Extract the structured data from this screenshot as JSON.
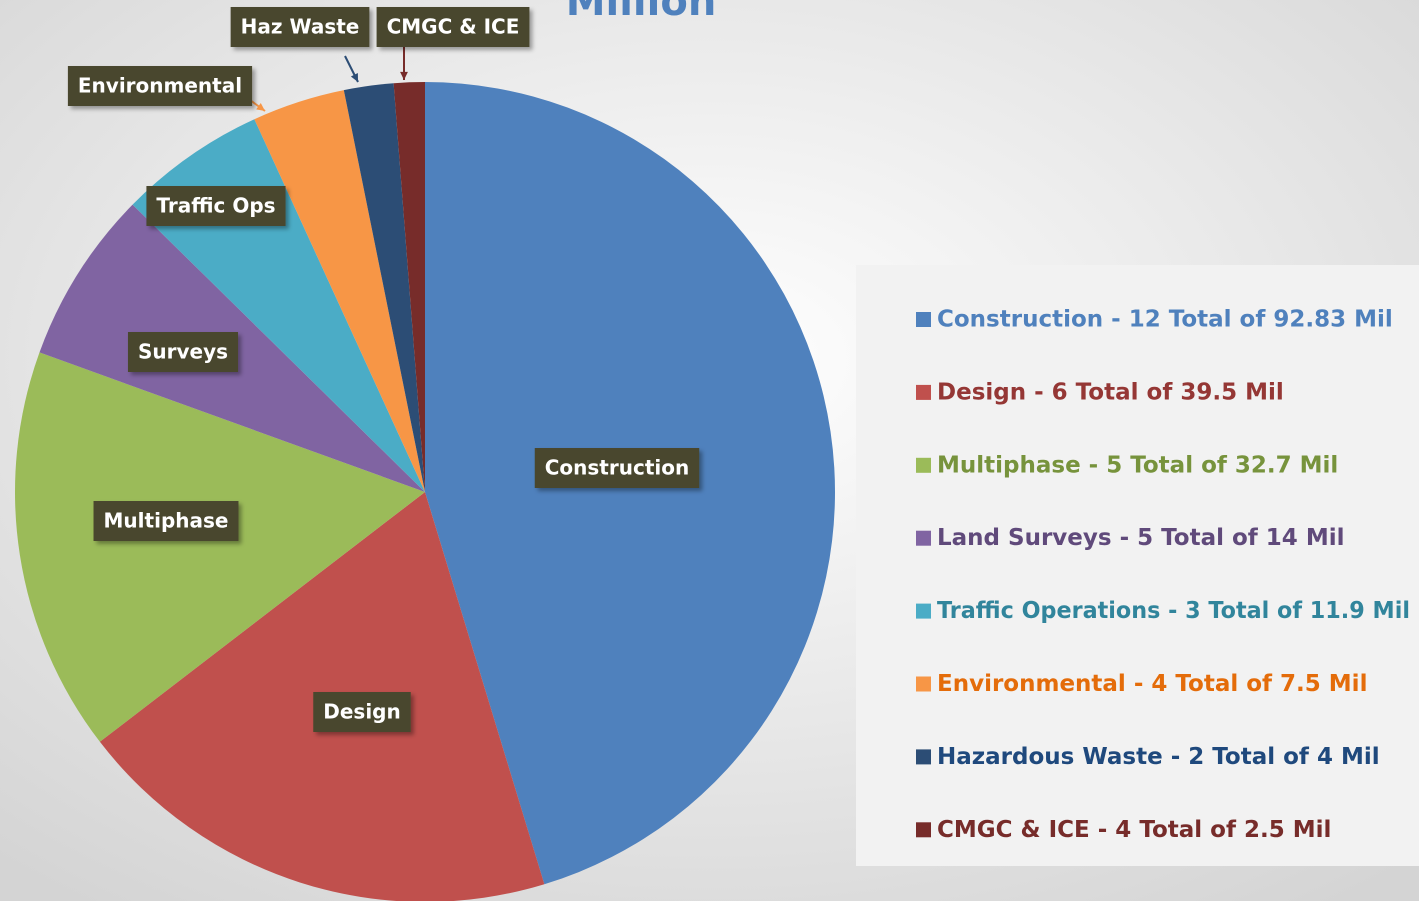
{
  "chart_data": {
    "type": "pie",
    "title": "Million",
    "categories": [
      "Construction",
      "Design",
      "Multiphase",
      "Surveys",
      "Traffic Ops",
      "Environmental",
      "Haz Waste",
      "CMGC & ICE"
    ],
    "values": [
      92.83,
      39.5,
      32.7,
      14,
      11.9,
      7.5,
      4,
      2.5
    ],
    "colors": [
      "#4f81bd",
      "#c0504d",
      "#9bbb59",
      "#8064a2",
      "#4bacc6",
      "#f79646",
      "#2c4d75",
      "#772c2a"
    ],
    "legend_labels": [
      "Construction - 12 Total of 92.83 Mil",
      "Design - 6 Total of 39.5 Mil",
      "Multiphase - 5 Total of 32.7 Mil",
      "Land Surveys - 5 Total of 14 Mil",
      "Traffic Operations - 3 Total of 11.9 Mil",
      "Environmental - 4 Total of 7.5 Mil",
      "Hazardous Waste - 2 Total of 4 Mil",
      "CMGC & ICE - 4 Total of 2.5 Mil"
    ],
    "legend_colors": [
      "#4f81bd",
      "#953735",
      "#77933c",
      "#604a7b",
      "#31859c",
      "#e46c0a",
      "#1f497d",
      "#772c2a"
    ],
    "legend": "right"
  }
}
